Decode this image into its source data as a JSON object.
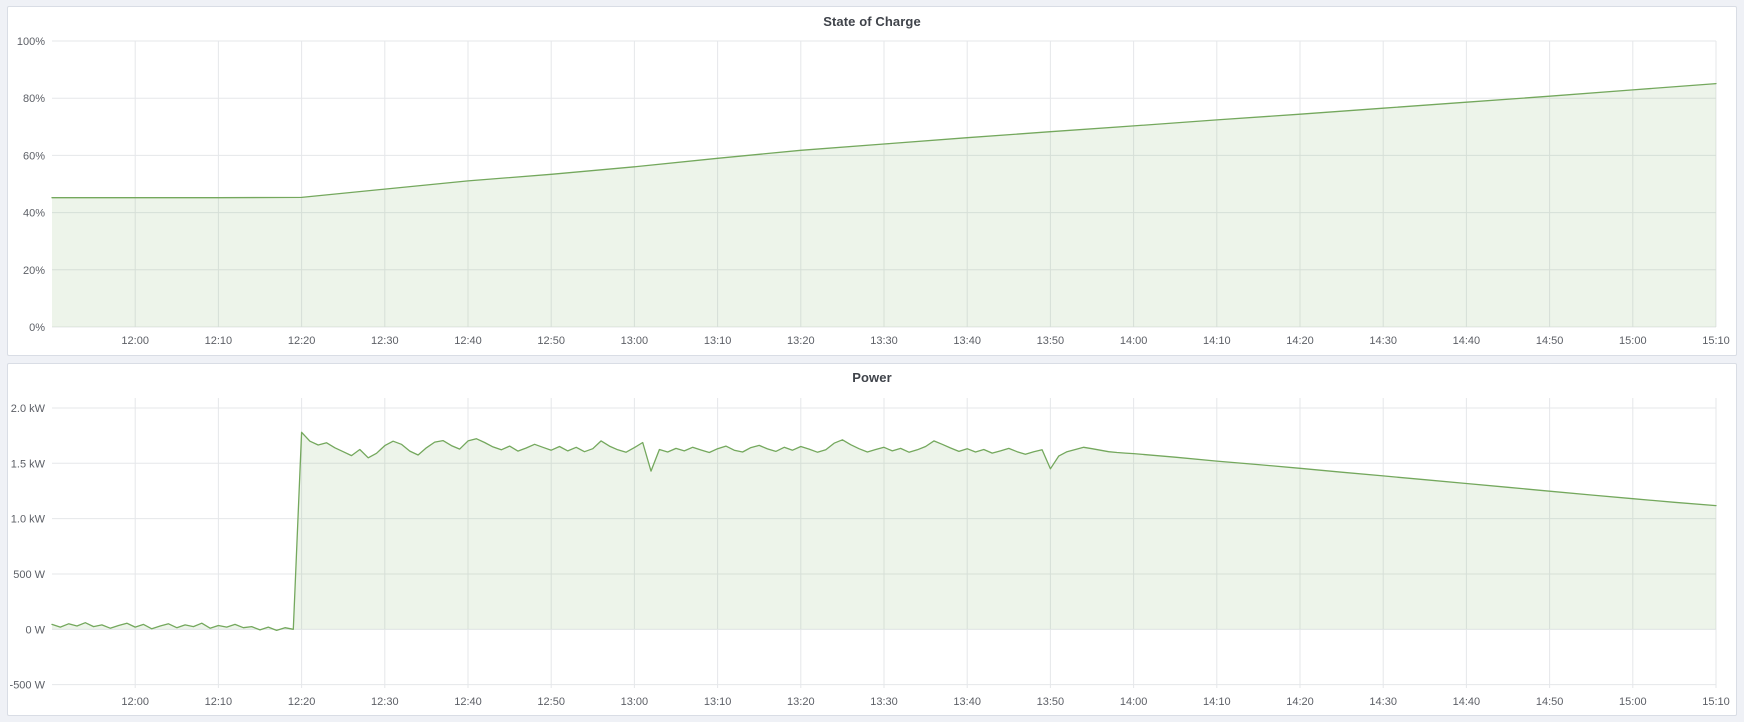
{
  "colors": {
    "series_green": "#74a85d",
    "series_green_fill": "rgba(116,168,93,0.13)",
    "grid": "#e5e7ea",
    "axis_text": "#5c5f66",
    "panel_border": "#d9dde5",
    "page_background": "#eff1f6"
  },
  "chart_data": [
    {
      "type": "area",
      "title": "State of Charge",
      "xlabel": "",
      "ylabel": "",
      "legend": "none",
      "grid": true,
      "x_range": [
        710,
        910
      ],
      "y_plot_range": [
        0,
        100
      ],
      "y_ticks": [
        {
          "v": 0,
          "label": "0%"
        },
        {
          "v": 20,
          "label": "20%"
        },
        {
          "v": 40,
          "label": "40%"
        },
        {
          "v": 60,
          "label": "60%"
        },
        {
          "v": 80,
          "label": "80%"
        },
        {
          "v": 100,
          "label": "100%"
        }
      ],
      "x_ticks": [
        {
          "m": 720,
          "label": "12:00"
        },
        {
          "m": 730,
          "label": "12:10"
        },
        {
          "m": 740,
          "label": "12:20"
        },
        {
          "m": 750,
          "label": "12:30"
        },
        {
          "m": 760,
          "label": "12:40"
        },
        {
          "m": 770,
          "label": "12:50"
        },
        {
          "m": 780,
          "label": "13:00"
        },
        {
          "m": 790,
          "label": "13:10"
        },
        {
          "m": 800,
          "label": "13:20"
        },
        {
          "m": 810,
          "label": "13:30"
        },
        {
          "m": 820,
          "label": "13:40"
        },
        {
          "m": 830,
          "label": "13:50"
        },
        {
          "m": 840,
          "label": "14:00"
        },
        {
          "m": 850,
          "label": "14:10"
        },
        {
          "m": 860,
          "label": "14:20"
        },
        {
          "m": 870,
          "label": "14:30"
        },
        {
          "m": 880,
          "label": "14:40"
        },
        {
          "m": 890,
          "label": "14:50"
        },
        {
          "m": 900,
          "label": "15:00"
        },
        {
          "m": 910,
          "label": "15:10"
        }
      ],
      "series": [
        {
          "name": "State of Charge (%)",
          "color": "#74a85d",
          "fill": "rgba(116,168,93,0.13)",
          "fill_to": 0,
          "points": [
            [
              710,
              45.2
            ],
            [
              720,
              45.2
            ],
            [
              730,
              45.2
            ],
            [
              740,
              45.3
            ],
            [
              750,
              48.2
            ],
            [
              760,
              51.1
            ],
            [
              770,
              53.4
            ],
            [
              780,
              56.0
            ],
            [
              790,
              59.0
            ],
            [
              800,
              61.8
            ],
            [
              810,
              64.0
            ],
            [
              820,
              66.2
            ],
            [
              830,
              68.3
            ],
            [
              840,
              70.3
            ],
            [
              850,
              72.4
            ],
            [
              860,
              74.4
            ],
            [
              870,
              76.5
            ],
            [
              880,
              78.6
            ],
            [
              890,
              80.7
            ],
            [
              900,
              82.9
            ],
            [
              910,
              85.1
            ]
          ]
        }
      ]
    },
    {
      "type": "area",
      "title": "Power",
      "xlabel": "",
      "ylabel": "",
      "legend": "none",
      "grid": true,
      "x_range": [
        710,
        910
      ],
      "y_plot_range": [
        -530,
        2090
      ],
      "y_ticks": [
        {
          "v": -500,
          "label": "-500 W"
        },
        {
          "v": 0,
          "label": "0 W"
        },
        {
          "v": 500,
          "label": "500 W"
        },
        {
          "v": 1000,
          "label": "1.0 kW"
        },
        {
          "v": 1500,
          "label": "1.5 kW"
        },
        {
          "v": 2000,
          "label": "2.0 kW"
        }
      ],
      "x_ticks": [
        {
          "m": 720,
          "label": "12:00"
        },
        {
          "m": 730,
          "label": "12:10"
        },
        {
          "m": 740,
          "label": "12:20"
        },
        {
          "m": 750,
          "label": "12:30"
        },
        {
          "m": 760,
          "label": "12:40"
        },
        {
          "m": 770,
          "label": "12:50"
        },
        {
          "m": 780,
          "label": "13:00"
        },
        {
          "m": 790,
          "label": "13:10"
        },
        {
          "m": 800,
          "label": "13:20"
        },
        {
          "m": 810,
          "label": "13:30"
        },
        {
          "m": 820,
          "label": "13:40"
        },
        {
          "m": 830,
          "label": "13:50"
        },
        {
          "m": 840,
          "label": "14:00"
        },
        {
          "m": 850,
          "label": "14:10"
        },
        {
          "m": 860,
          "label": "14:20"
        },
        {
          "m": 870,
          "label": "14:30"
        },
        {
          "m": 880,
          "label": "14:40"
        },
        {
          "m": 890,
          "label": "14:50"
        },
        {
          "m": 900,
          "label": "15:00"
        },
        {
          "m": 910,
          "label": "15:10"
        }
      ],
      "series": [
        {
          "name": "Power (W)",
          "color": "#74a85d",
          "fill": "rgba(116,168,93,0.13)",
          "fill_to": 0,
          "points": [
            [
              710,
              45
            ],
            [
              711,
              20
            ],
            [
              712,
              50
            ],
            [
              713,
              30
            ],
            [
              714,
              60
            ],
            [
              715,
              25
            ],
            [
              716,
              40
            ],
            [
              717,
              10
            ],
            [
              718,
              35
            ],
            [
              719,
              55
            ],
            [
              720,
              20
            ],
            [
              721,
              45
            ],
            [
              722,
              5
            ],
            [
              723,
              30
            ],
            [
              724,
              50
            ],
            [
              725,
              15
            ],
            [
              726,
              40
            ],
            [
              727,
              25
            ],
            [
              728,
              55
            ],
            [
              729,
              10
            ],
            [
              730,
              35
            ],
            [
              731,
              20
            ],
            [
              732,
              45
            ],
            [
              733,
              15
            ],
            [
              734,
              25
            ],
            [
              735,
              -5
            ],
            [
              736,
              20
            ],
            [
              737,
              -10
            ],
            [
              738,
              15
            ],
            [
              739,
              0
            ],
            [
              740,
              1780
            ],
            [
              741,
              1700
            ],
            [
              742,
              1665
            ],
            [
              743,
              1685
            ],
            [
              744,
              1640
            ],
            [
              745,
              1605
            ],
            [
              746,
              1570
            ],
            [
              747,
              1625
            ],
            [
              748,
              1550
            ],
            [
              749,
              1590
            ],
            [
              750,
              1660
            ],
            [
              751,
              1700
            ],
            [
              752,
              1672
            ],
            [
              753,
              1610
            ],
            [
              754,
              1575
            ],
            [
              755,
              1640
            ],
            [
              756,
              1692
            ],
            [
              757,
              1705
            ],
            [
              758,
              1660
            ],
            [
              759,
              1628
            ],
            [
              760,
              1702
            ],
            [
              761,
              1722
            ],
            [
              762,
              1688
            ],
            [
              763,
              1648
            ],
            [
              764,
              1622
            ],
            [
              765,
              1655
            ],
            [
              766,
              1610
            ],
            [
              767,
              1638
            ],
            [
              768,
              1672
            ],
            [
              769,
              1645
            ],
            [
              770,
              1618
            ],
            [
              771,
              1652
            ],
            [
              772,
              1612
            ],
            [
              773,
              1645
            ],
            [
              774,
              1605
            ],
            [
              775,
              1632
            ],
            [
              776,
              1702
            ],
            [
              777,
              1655
            ],
            [
              778,
              1622
            ],
            [
              779,
              1600
            ],
            [
              780,
              1642
            ],
            [
              781,
              1688
            ],
            [
              782,
              1430
            ],
            [
              783,
              1625
            ],
            [
              784,
              1602
            ],
            [
              785,
              1635
            ],
            [
              786,
              1612
            ],
            [
              787,
              1645
            ],
            [
              788,
              1620
            ],
            [
              789,
              1598
            ],
            [
              790,
              1632
            ],
            [
              791,
              1655
            ],
            [
              792,
              1618
            ],
            [
              793,
              1602
            ],
            [
              794,
              1642
            ],
            [
              795,
              1662
            ],
            [
              796,
              1630
            ],
            [
              797,
              1608
            ],
            [
              798,
              1645
            ],
            [
              799,
              1618
            ],
            [
              800,
              1652
            ],
            [
              801,
              1628
            ],
            [
              802,
              1600
            ],
            [
              803,
              1622
            ],
            [
              804,
              1682
            ],
            [
              805,
              1712
            ],
            [
              806,
              1668
            ],
            [
              807,
              1632
            ],
            [
              808,
              1602
            ],
            [
              809,
              1625
            ],
            [
              810,
              1645
            ],
            [
              811,
              1612
            ],
            [
              812,
              1635
            ],
            [
              813,
              1600
            ],
            [
              814,
              1622
            ],
            [
              815,
              1652
            ],
            [
              816,
              1702
            ],
            [
              817,
              1672
            ],
            [
              818,
              1638
            ],
            [
              819,
              1608
            ],
            [
              820,
              1632
            ],
            [
              821,
              1602
            ],
            [
              822,
              1625
            ],
            [
              823,
              1592
            ],
            [
              824,
              1612
            ],
            [
              825,
              1635
            ],
            [
              826,
              1605
            ],
            [
              827,
              1582
            ],
            [
              828,
              1605
            ],
            [
              829,
              1622
            ],
            [
              830,
              1450
            ],
            [
              831,
              1565
            ],
            [
              832,
              1605
            ],
            [
              833,
              1625
            ],
            [
              834,
              1645
            ],
            [
              835,
              1632
            ],
            [
              836,
              1618
            ],
            [
              837,
              1605
            ],
            [
              838,
              1598
            ],
            [
              839,
              1592
            ],
            [
              840,
              1588
            ],
            [
              845,
              1555
            ],
            [
              850,
              1520
            ],
            [
              855,
              1488
            ],
            [
              860,
              1455
            ],
            [
              865,
              1420
            ],
            [
              870,
              1386
            ],
            [
              875,
              1352
            ],
            [
              880,
              1318
            ],
            [
              885,
              1283
            ],
            [
              890,
              1248
            ],
            [
              895,
              1214
            ],
            [
              900,
              1180
            ],
            [
              905,
              1148
            ],
            [
              910,
              1118
            ]
          ]
        }
      ]
    }
  ]
}
